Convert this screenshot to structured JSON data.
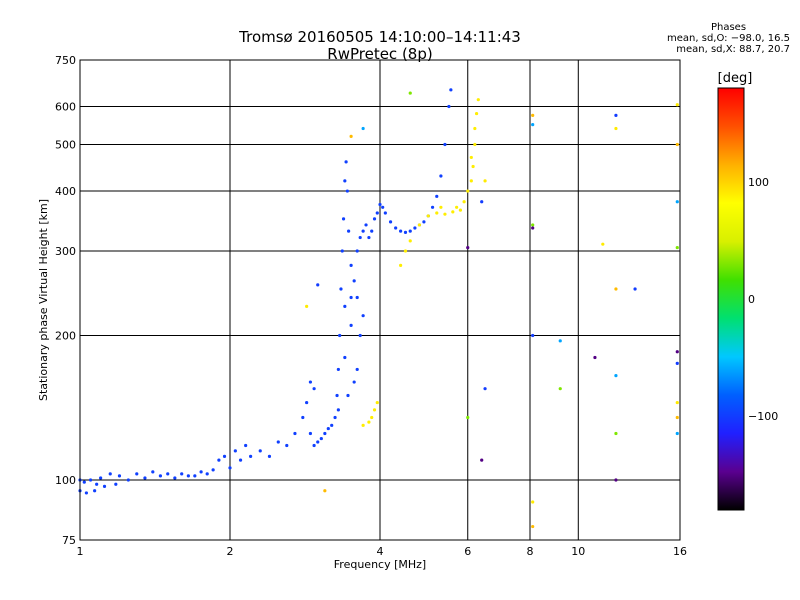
{
  "chart_data": {
    "type": "scatter",
    "title": "Tromsø 20160505 14:10:00–14:11:43",
    "subtitle": "RwPretec (8p)",
    "xlabel": "Frequency [MHz]",
    "ylabel": "Stationary phase Virtual Height [km]",
    "xscale": "log",
    "yscale": "log",
    "xlim": [
      1,
      16
    ],
    "ylim": [
      75,
      750
    ],
    "x_ticks": [
      1,
      2,
      4,
      6,
      8,
      10,
      16
    ],
    "x_tick_labels": [
      "1",
      "2",
      "4",
      "6",
      "8",
      "10",
      "16"
    ],
    "y_ticks": [
      75,
      100,
      200,
      300,
      400,
      500,
      600,
      750
    ],
    "y_tick_labels": [
      "75",
      "100",
      "200",
      "300",
      "400",
      "500",
      "600",
      "750"
    ],
    "grid": true,
    "stats": {
      "heading": "Phases",
      "line_o": "mean, sd,O: −98.0, 16.5",
      "line_x": "mean, sd,X: 88.7, 20.7"
    },
    "colorbar": {
      "label": "[deg]",
      "range": [
        -180,
        180
      ],
      "ticks": [
        100,
        0,
        -100
      ],
      "tick_labels": [
        "100",
        "0",
        "−100"
      ],
      "colormap": [
        "#000000",
        "#5a0090",
        "#2020ff",
        "#0060ff",
        "#00c8ff",
        "#00e070",
        "#40e000",
        "#d8f000",
        "#ffff00",
        "#ffb000",
        "#ff5000",
        "#ff0000"
      ]
    },
    "series": [
      {
        "mode": "O",
        "phase": -98,
        "points": [
          [
            1.0,
            100
          ],
          [
            1.0,
            95
          ],
          [
            1.02,
            99
          ],
          [
            1.03,
            94
          ],
          [
            1.05,
            100
          ],
          [
            1.07,
            95
          ],
          [
            1.08,
            98
          ],
          [
            1.1,
            101
          ],
          [
            1.12,
            97
          ],
          [
            1.15,
            103
          ],
          [
            1.18,
            98
          ],
          [
            1.2,
            102
          ],
          [
            1.25,
            100
          ],
          [
            1.3,
            103
          ],
          [
            1.35,
            101
          ],
          [
            1.4,
            104
          ],
          [
            1.45,
            102
          ],
          [
            1.5,
            103
          ],
          [
            1.55,
            101
          ],
          [
            1.6,
            103
          ],
          [
            1.65,
            102
          ],
          [
            1.7,
            102
          ],
          [
            1.75,
            104
          ],
          [
            1.8,
            103
          ],
          [
            1.85,
            105
          ],
          [
            1.9,
            110
          ],
          [
            1.95,
            112
          ],
          [
            2.0,
            106
          ],
          [
            2.05,
            115
          ],
          [
            2.1,
            110
          ],
          [
            2.15,
            118
          ],
          [
            2.2,
            112
          ],
          [
            2.3,
            115
          ],
          [
            2.4,
            112
          ],
          [
            2.5,
            120
          ],
          [
            2.6,
            118
          ],
          [
            2.7,
            125
          ],
          [
            2.8,
            135
          ],
          [
            2.85,
            145
          ],
          [
            2.9,
            125
          ],
          [
            2.95,
            118
          ],
          [
            3.0,
            120
          ],
          [
            3.05,
            122
          ],
          [
            3.1,
            125
          ],
          [
            3.15,
            128
          ],
          [
            3.2,
            130
          ],
          [
            3.25,
            135
          ],
          [
            3.28,
            150
          ],
          [
            3.3,
            170
          ],
          [
            3.32,
            200
          ],
          [
            3.34,
            250
          ],
          [
            3.36,
            300
          ],
          [
            3.38,
            350
          ],
          [
            3.4,
            420
          ],
          [
            3.42,
            460
          ],
          [
            3.44,
            400
          ],
          [
            3.46,
            330
          ],
          [
            3.5,
            280
          ],
          [
            3.55,
            260
          ],
          [
            3.6,
            300
          ],
          [
            3.65,
            320
          ],
          [
            3.7,
            330
          ],
          [
            3.75,
            340
          ],
          [
            3.8,
            320
          ],
          [
            3.85,
            330
          ],
          [
            3.9,
            350
          ],
          [
            3.95,
            360
          ],
          [
            4.0,
            375
          ],
          [
            4.05,
            370
          ],
          [
            4.1,
            360
          ],
          [
            4.2,
            345
          ],
          [
            4.3,
            335
          ],
          [
            4.4,
            330
          ],
          [
            4.5,
            328
          ],
          [
            4.6,
            330
          ],
          [
            4.7,
            335
          ],
          [
            4.8,
            340
          ],
          [
            4.9,
            345
          ],
          [
            5.0,
            355
          ],
          [
            5.1,
            370
          ],
          [
            5.2,
            390
          ],
          [
            5.3,
            430
          ],
          [
            5.4,
            500
          ],
          [
            5.5,
            600
          ],
          [
            5.55,
            650
          ],
          [
            3.3,
            140
          ],
          [
            3.4,
            180
          ],
          [
            3.5,
            210
          ],
          [
            3.6,
            240
          ],
          [
            3.45,
            150
          ],
          [
            3.55,
            160
          ],
          [
            3.6,
            170
          ],
          [
            3.65,
            200
          ],
          [
            3.7,
            220
          ],
          [
            3.4,
            230
          ],
          [
            3.5,
            240
          ],
          [
            2.9,
            160
          ],
          [
            2.95,
            155
          ]
        ]
      },
      {
        "mode": "X",
        "phase": 89,
        "points": [
          [
            3.7,
            130
          ],
          [
            3.8,
            132
          ],
          [
            3.85,
            135
          ],
          [
            3.9,
            140
          ],
          [
            3.95,
            145
          ],
          [
            4.4,
            280
          ],
          [
            4.5,
            300
          ],
          [
            4.6,
            315
          ],
          [
            4.8,
            340
          ],
          [
            5.0,
            355
          ],
          [
            5.2,
            360
          ],
          [
            5.4,
            358
          ],
          [
            5.6,
            362
          ],
          [
            5.8,
            365
          ],
          [
            5.9,
            380
          ],
          [
            6.0,
            400
          ],
          [
            6.1,
            420
          ],
          [
            6.15,
            450
          ],
          [
            6.2,
            500
          ],
          [
            6.25,
            580
          ],
          [
            6.3,
            620
          ],
          [
            6.2,
            540
          ],
          [
            6.1,
            470
          ],
          [
            5.7,
            370
          ],
          [
            5.3,
            370
          ]
        ]
      },
      {
        "mode": "scatter",
        "phase": null,
        "points": [
          [
            3.0,
            255
          ],
          [
            2.85,
            230
          ],
          [
            3.5,
            520
          ],
          [
            3.7,
            540
          ],
          [
            4.6,
            640
          ],
          [
            6.0,
            305
          ],
          [
            6.4,
            380
          ],
          [
            6.5,
            420
          ],
          [
            8.1,
            575
          ],
          [
            8.1,
            550
          ],
          [
            8.1,
            340
          ],
          [
            8.1,
            335
          ],
          [
            8.1,
            200
          ],
          [
            8.1,
            90
          ],
          [
            8.1,
            80
          ],
          [
            9.2,
            195
          ],
          [
            9.2,
            155
          ],
          [
            10.8,
            180
          ],
          [
            11.9,
            575
          ],
          [
            11.9,
            540
          ],
          [
            11.9,
            250
          ],
          [
            11.9,
            165
          ],
          [
            11.9,
            125
          ],
          [
            11.9,
            100
          ],
          [
            13.0,
            250
          ],
          [
            15.8,
            605
          ],
          [
            15.8,
            500
          ],
          [
            15.8,
            380
          ],
          [
            15.8,
            305
          ],
          [
            15.8,
            185
          ],
          [
            15.8,
            175
          ],
          [
            15.8,
            145
          ],
          [
            15.8,
            135
          ],
          [
            15.8,
            125
          ],
          [
            6.0,
            135
          ],
          [
            6.4,
            110
          ],
          [
            6.5,
            155
          ],
          [
            11.2,
            310
          ],
          [
            3.1,
            95
          ]
        ]
      }
    ]
  }
}
